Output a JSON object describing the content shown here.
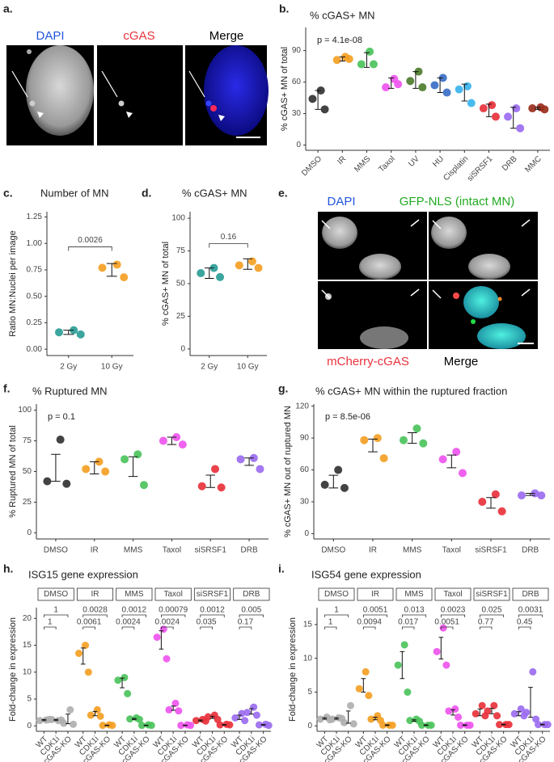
{
  "images": [
    {
      "panel": "a.",
      "channels": [
        "DAPI",
        "cGAS",
        "Merge"
      ]
    },
    {
      "panel": "e.",
      "channels": [
        "DAPI",
        "GFP-NLS (intact MN)",
        "mCherry-cGAS",
        "Merge"
      ]
    }
  ],
  "chart_data": [
    {
      "type": "dot",
      "panel": "b.",
      "title": "% cGAS+ MN",
      "y_label": "% cGAS+ MN of total",
      "annotation": "p = 4.1e-08",
      "ylim": [
        -5,
        112
      ],
      "yticks": [
        0,
        30,
        60,
        90
      ],
      "categories": [
        "DMSO",
        "IR",
        "MMS",
        "Taxol",
        "UV",
        "HU",
        "Cisplatin",
        "siSRSF1",
        "DRB",
        "MMC"
      ],
      "colors": [
        "#333333",
        "#f4a024",
        "#4cc35c",
        "#ee55ee",
        "#4e7d2e",
        "#3b6fc7",
        "#3ab4ee",
        "#e8323c",
        "#9b6cf0",
        "#9a2e1c"
      ],
      "points": [
        [
          52,
          44,
          34
        ],
        [
          84,
          81,
          82
        ],
        [
          89,
          77,
          77
        ],
        [
          63,
          55,
          58
        ],
        [
          70,
          61,
          55
        ],
        [
          64,
          57,
          50
        ],
        [
          56,
          53,
          40
        ],
        [
          38,
          35,
          27
        ],
        [
          35,
          27,
          16
        ],
        [
          36,
          35,
          34
        ]
      ],
      "means": [
        43,
        82,
        81,
        59,
        62,
        57,
        50,
        33,
        26,
        35
      ],
      "errors": [
        9,
        2,
        7,
        5,
        8,
        7,
        8,
        6,
        10,
        1
      ]
    },
    {
      "type": "dot",
      "panel": "c.",
      "title": "Number of MN",
      "y_label": "Ratio MN:Nuclei per image",
      "bracket": "0.0026",
      "ylim": [
        -0.06,
        1.3
      ],
      "yticks": [
        {
          "value": 0,
          "label": "0.00"
        },
        0.25,
        {
          "value": 0.5,
          "label": "0.50"
        },
        0.75,
        {
          "value": 1,
          "label": "1.00"
        },
        1.25
      ],
      "categories": [
        "2 Gy",
        "10 Gy"
      ],
      "colors": [
        "#2a9d96",
        "#f4a024"
      ],
      "points": [
        [
          0.18,
          0.16,
          0.14
        ],
        [
          0.8,
          0.77,
          0.68
        ]
      ],
      "means": [
        0.16,
        0.75
      ],
      "errors": [
        0.02,
        0.06
      ]
    },
    {
      "type": "dot",
      "panel": "d.",
      "title": "% cGAS+ MN",
      "y_label": "% cGAS+ MN of total",
      "bracket": "0.16",
      "ylim": [
        -5,
        105
      ],
      "yticks": [
        0,
        25,
        50,
        75,
        100
      ],
      "categories": [
        "2 Gy",
        "10 Gy"
      ],
      "colors": [
        "#2a9d96",
        "#f4a024"
      ],
      "points": [
        [
          62,
          58,
          55
        ],
        [
          67,
          64,
          62
        ]
      ],
      "means": [
        58,
        65
      ],
      "errors": [
        4,
        4
      ]
    },
    {
      "type": "dot",
      "panel": "f.",
      "title": "% Ruptured MN",
      "y_label": "% Ruptured MN of total",
      "annotation": "p = 0.1",
      "ylim": [
        -5,
        105
      ],
      "yticks": [
        0,
        25,
        50,
        75,
        100
      ],
      "categories": [
        "DMSO",
        "IR",
        "MMS",
        "Taxol",
        "siSRSF1",
        "DRB"
      ],
      "colors": [
        "#333333",
        "#f4a024",
        "#4cc35c",
        "#ee55ee",
        "#e8323c",
        "#9b6cf0"
      ],
      "points": [
        [
          76,
          42,
          40
        ],
        [
          58,
          52,
          50
        ],
        [
          64,
          60,
          39
        ],
        [
          78,
          75,
          72
        ],
        [
          52,
          38,
          37
        ],
        [
          61,
          60,
          52
        ]
      ],
      "means": [
        53,
        53,
        54,
        75,
        42,
        58
      ],
      "errors": [
        11,
        5,
        8,
        3,
        5,
        3
      ]
    },
    {
      "type": "dot",
      "panel": "g.",
      "title": "% cGAS+ MN within the ruptured fraction",
      "y_label": "% cGAS+ MN out of ruptured MN",
      "annotation": "p = 8.5e-06",
      "ylim": [
        -5,
        122
      ],
      "yticks": [
        0,
        30,
        60,
        90,
        120
      ],
      "categories": [
        "DMSO",
        "IR",
        "MMS",
        "Taxol",
        "siSRSF1",
        "DRB"
      ],
      "colors": [
        "#333333",
        "#f4a024",
        "#4cc35c",
        "#ee55ee",
        "#e8323c",
        "#9b6cf0"
      ],
      "points": [
        [
          60,
          46,
          43
        ],
        [
          90,
          88,
          71
        ],
        [
          99,
          88,
          85
        ],
        [
          77,
          70,
          57
        ],
        [
          37,
          30,
          21
        ],
        [
          38,
          36,
          36
        ]
      ],
      "means": [
        49,
        83,
        90,
        68,
        29,
        37
      ],
      "errors": [
        6,
        6,
        5,
        6,
        5,
        1
      ]
    },
    {
      "type": "facet",
      "panel": "h.",
      "title": "ISG15 gene expression",
      "y_label": "Fold-change in expression",
      "ylim": [
        -1,
        22
      ],
      "yticks": [
        0,
        5,
        10,
        15,
        20
      ],
      "groups": [
        "WT",
        "CDK1i",
        "cGAS-KO"
      ],
      "facets": [
        {
          "name": "DMSO",
          "color": "#b0b0b0",
          "brackets": [
            "1",
            "1"
          ],
          "points": [
            [
              1.1,
              1.0,
              1.2
            ],
            [
              1.0,
              1.2,
              1.1
            ],
            [
              3.0,
              0.5,
              0.3
            ]
          ],
          "means": [
            1.1,
            1.1,
            1.3
          ],
          "errors": [
            0.1,
            0.1,
            0.9
          ]
        },
        {
          "name": "IR",
          "color": "#f4a024",
          "brackets": [
            "0.0028",
            "0.0061"
          ],
          "points": [
            [
              15,
              13.5,
              10
            ],
            [
              3,
              2,
              1.8
            ],
            [
              0.2,
              0.1,
              0.1
            ]
          ],
          "means": [
            13,
            2.3,
            0.1
          ],
          "errors": [
            1.5,
            0.4,
            0.05
          ]
        },
        {
          "name": "MMS",
          "color": "#4cc35c",
          "brackets": [
            "0.0012",
            "0.0024"
          ],
          "points": [
            [
              9,
              8.5,
              6
            ],
            [
              1.5,
              1.3,
              1.2
            ],
            [
              0.2,
              0.1,
              0.1
            ]
          ],
          "means": [
            8,
            1.3,
            0.1
          ],
          "errors": [
            0.9,
            0.1,
            0.05
          ]
        },
        {
          "name": "Taxol",
          "color": "#ee55ee",
          "brackets": [
            "0.00079",
            "0.0024"
          ],
          "points": [
            [
              18,
              16.5,
              12.5
            ],
            [
              4.2,
              3,
              2.8
            ],
            [
              0.2,
              0.1,
              0.1
            ]
          ],
          "means": [
            16,
            3.3,
            0.1
          ],
          "errors": [
            1.7,
            0.4,
            0.05
          ]
        },
        {
          "name": "siSRSF1",
          "color": "#e8323c",
          "brackets": [
            "0.0012",
            "0.035"
          ],
          "points": [
            [
              1.2,
              1.0,
              0.9
            ],
            [
              2.0,
              1.7,
              1.2
            ],
            [
              0.3,
              0.2,
              0.2
            ]
          ],
          "means": [
            1.0,
            1.6,
            0.2
          ],
          "errors": [
            0.1,
            0.2,
            0.05
          ]
        },
        {
          "name": "DRB",
          "color": "#9b6cf0",
          "brackets": [
            "0.005",
            "0.17"
          ],
          "points": [
            [
              2.3,
              1.5,
              1.0
            ],
            [
              3.5,
              2.5,
              2.0
            ],
            [
              0.3,
              0.2,
              0.1
            ]
          ],
          "means": [
            1.6,
            2.7,
            0.2
          ],
          "errors": [
            0.4,
            0.5,
            0.05
          ]
        }
      ]
    },
    {
      "type": "facet",
      "panel": "i.",
      "title": "ISG54 gene expression",
      "y_label": "Fold-change in expression",
      "ylim": [
        -0.8,
        17.5
      ],
      "yticks": [
        0,
        5,
        10,
        15
      ],
      "groups": [
        "WT",
        "CDK1i",
        "cGAS-KO"
      ],
      "facets": [
        {
          "name": "DMSO",
          "color": "#b0b0b0",
          "brackets": [
            "1",
            "1"
          ],
          "points": [
            [
              1.3,
              1.0,
              0.9
            ],
            [
              1.2,
              1.0,
              1.1
            ],
            [
              3.0,
              0.5,
              0.3
            ]
          ],
          "means": [
            1.1,
            1.1,
            1.3
          ],
          "errors": [
            0.1,
            0.1,
            0.9
          ]
        },
        {
          "name": "IR",
          "color": "#f4a024",
          "brackets": [
            "0.0051",
            "0.0094"
          ],
          "points": [
            [
              8,
              5.5,
              4.5
            ],
            [
              1.5,
              1.0,
              0.8
            ],
            [
              0.1,
              0.1,
              0.1
            ]
          ],
          "means": [
            6,
            1.1,
            0.1
          ],
          "errors": [
            1,
            0.2,
            0.05
          ]
        },
        {
          "name": "MMS",
          "color": "#4cc35c",
          "brackets": [
            "0.013",
            "0.017"
          ],
          "points": [
            [
              12,
              9,
              5
            ],
            [
              1.0,
              0.8,
              0.7
            ],
            [
              0.1,
              0.1,
              0.1
            ]
          ],
          "means": [
            9,
            0.8,
            0.1
          ],
          "errors": [
            2,
            0.1,
            0.05
          ]
        },
        {
          "name": "Taxol",
          "color": "#ee55ee",
          "brackets": [
            "0.0023",
            "0.0051"
          ],
          "points": [
            [
              14.5,
              11,
              9
            ],
            [
              2.5,
              2.2,
              1.3
            ],
            [
              0.1,
              0.1,
              0.1
            ]
          ],
          "means": [
            11.5,
            2,
            0.1
          ],
          "errors": [
            1.6,
            0.4,
            0.05
          ]
        },
        {
          "name": "siSRSF1",
          "color": "#e8323c",
          "brackets": [
            "0.025",
            "0.77"
          ],
          "points": [
            [
              3,
              1.8,
              1.5
            ],
            [
              3,
              2.2,
              1.5
            ],
            [
              0.2,
              0.2,
              0.2
            ]
          ],
          "means": [
            2,
            2.2,
            0.2
          ],
          "errors": [
            0.5,
            0.4,
            0.05
          ]
        },
        {
          "name": "DRB",
          "color": "#9b6cf0",
          "brackets": [
            "0.0031",
            "0.45"
          ],
          "points": [
            [
              2.5,
              1.8,
              1.5
            ],
            [
              8,
              2,
              1
            ],
            [
              0.2,
              0.2,
              0.2
            ]
          ],
          "means": [
            1.8,
            3.5,
            0.2
          ],
          "errors": [
            0.3,
            2.2,
            0.05
          ]
        }
      ]
    }
  ]
}
